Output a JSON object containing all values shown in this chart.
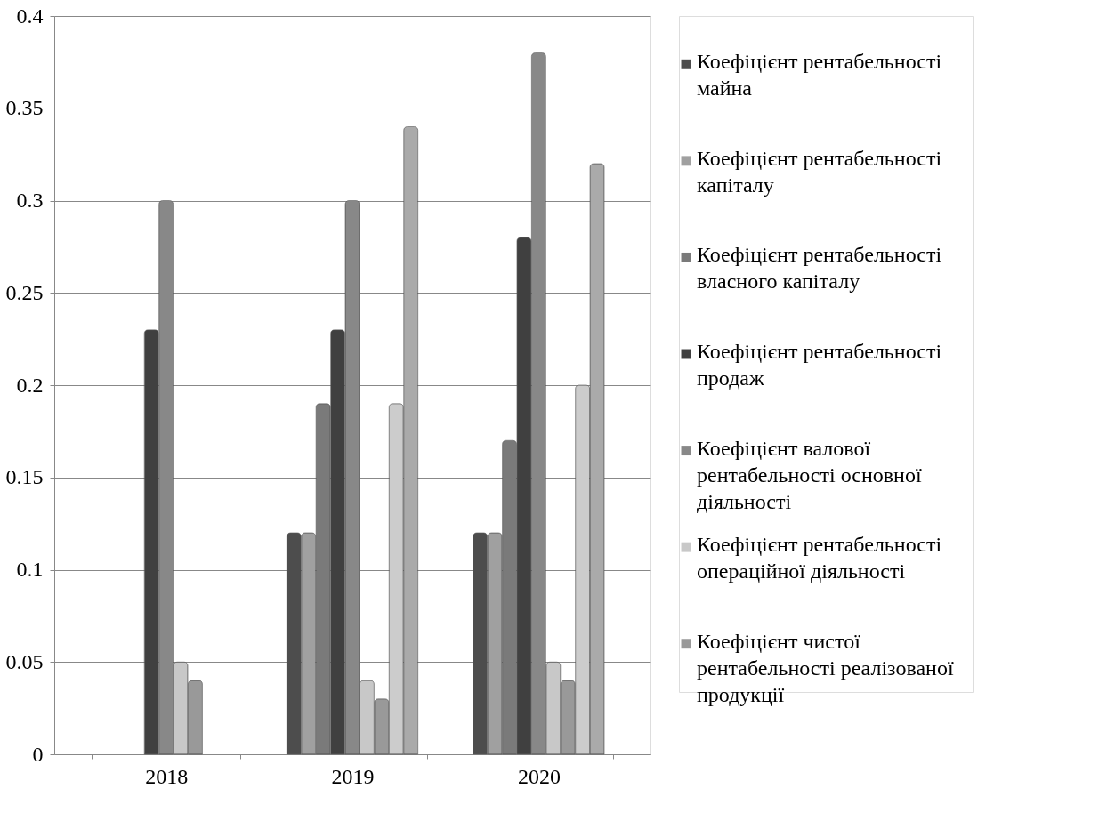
{
  "chart_data": {
    "type": "bar",
    "categories": [
      "2018",
      "2019",
      "2020"
    ],
    "series": [
      {
        "name": "Коефіцієнт рентабельності майна",
        "color": "#4d4d4d",
        "values": [
          null,
          0.12,
          0.12
        ]
      },
      {
        "name": "Коефіцієнт рентабельності капіталу",
        "color": "#a0a0a0",
        "values": [
          null,
          0.12,
          0.12
        ]
      },
      {
        "name": "Коефіцієнт рентабельності власного капіталу",
        "color": "#7a7a7a",
        "values": [
          null,
          0.19,
          0.17
        ]
      },
      {
        "name": "Коефіцієнт рентабельності продаж",
        "color": "#404040",
        "values": [
          0.23,
          0.23,
          0.28
        ]
      },
      {
        "name": "Коефіцієнт валової рентабельності основної діяльності",
        "color": "#888888",
        "values": [
          0.3,
          0.3,
          0.38
        ]
      },
      {
        "name": "Коефіцієнт рентабельності операційної діяльності",
        "color": "#c8c8c8",
        "values": [
          0.05,
          0.04,
          0.05
        ]
      },
      {
        "name": "Коефіцієнт чистої рентабельності реалізованої продукції",
        "color": "#999999",
        "values": [
          0.04,
          0.03,
          0.04
        ]
      },
      {
        "color": "#cccccc",
        "values": [
          null,
          0.19,
          0.2
        ]
      },
      {
        "color": "#aaaaaa",
        "values": [
          null,
          0.34,
          0.32
        ]
      }
    ],
    "ylim": [
      0,
      0.4
    ],
    "yticks": [
      0,
      0.05,
      0.1,
      0.15,
      0.2,
      0.25,
      0.3,
      0.35,
      0.4
    ],
    "grid": "y",
    "legend": "right"
  }
}
